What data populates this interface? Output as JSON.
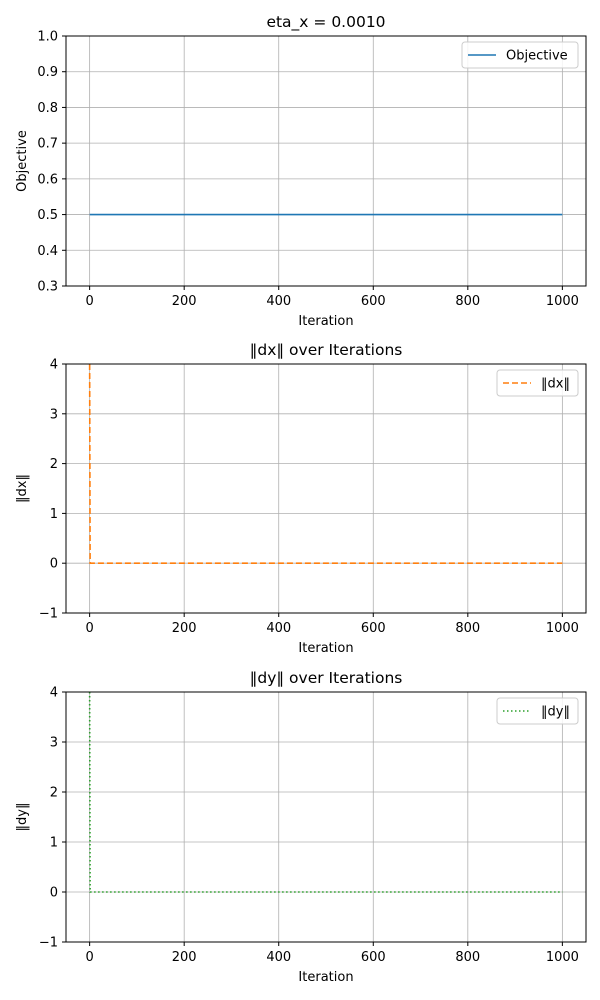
{
  "chart_data": [
    {
      "type": "line",
      "title": "eta_x = 0.0010",
      "xlabel": "Iteration",
      "ylabel": "Objective",
      "xlim": [
        -50,
        1050
      ],
      "ylim": [
        0.3,
        1.0
      ],
      "xticks": [
        0,
        200,
        400,
        600,
        800,
        1000
      ],
      "yticks": [
        0.3,
        0.4,
        0.5,
        0.6,
        0.7,
        0.8,
        0.9,
        1.0
      ],
      "ytick_labels": [
        "0.3",
        "0.4",
        "0.5",
        "0.6",
        "0.7",
        "0.8",
        "0.9",
        "1.0"
      ],
      "grid": true,
      "legend": "top-right",
      "series": [
        {
          "name": "Objective",
          "color": "#1f77b4",
          "linestyle": "solid",
          "x": [
            0,
            1000
          ],
          "y": [
            0.5,
            0.5
          ]
        }
      ]
    },
    {
      "type": "line",
      "title": "‖dx‖ over Iterations",
      "xlabel": "Iteration",
      "ylabel": "‖dx‖",
      "xlim": [
        -50,
        1050
      ],
      "ylim": [
        -1,
        4
      ],
      "xticks": [
        0,
        200,
        400,
        600,
        800,
        1000
      ],
      "yticks": [
        -1,
        0,
        1,
        2,
        3,
        4
      ],
      "ytick_labels": [
        "−1",
        "0",
        "1",
        "2",
        "3",
        "4"
      ],
      "grid": true,
      "legend": "top-right",
      "series": [
        {
          "name": "‖dx‖",
          "color": "#ff7f0e",
          "linestyle": "dashed",
          "x": [
            0,
            1,
            1000
          ],
          "y": [
            4,
            0,
            0
          ]
        }
      ]
    },
    {
      "type": "line",
      "title": "‖dy‖ over Iterations",
      "xlabel": "Iteration",
      "ylabel": "‖dy‖",
      "xlim": [
        -50,
        1050
      ],
      "ylim": [
        -1,
        4
      ],
      "xticks": [
        0,
        200,
        400,
        600,
        800,
        1000
      ],
      "yticks": [
        -1,
        0,
        1,
        2,
        3,
        4
      ],
      "ytick_labels": [
        "−1",
        "0",
        "1",
        "2",
        "3",
        "4"
      ],
      "grid": true,
      "legend": "top-right",
      "series": [
        {
          "name": "‖dy‖",
          "color": "#2ca02c",
          "linestyle": "dotted",
          "x": [
            0,
            1,
            1000
          ],
          "y": [
            4,
            0,
            0
          ]
        }
      ]
    }
  ]
}
